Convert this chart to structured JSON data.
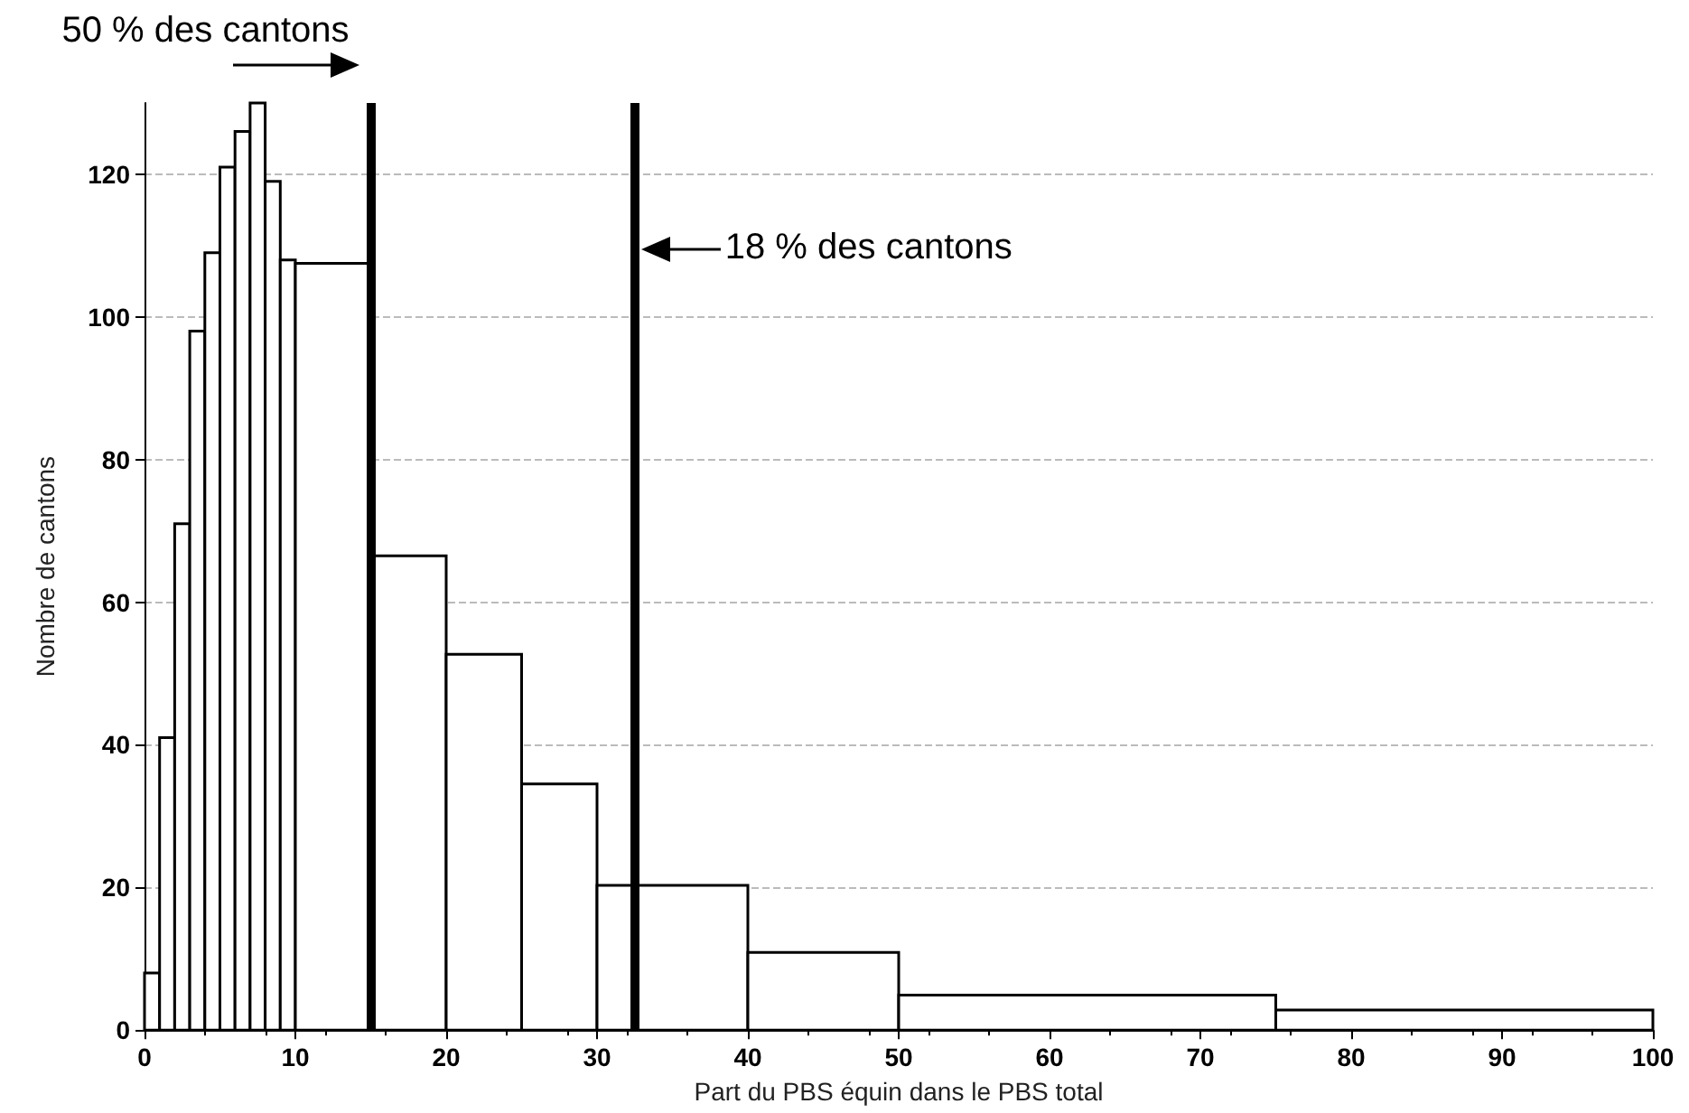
{
  "chart_data": {
    "type": "histogram",
    "xlabel": "Part du PBS équin dans le PBS total",
    "ylabel": "Nombre de cantons",
    "bins": [
      0,
      1,
      2,
      3,
      4,
      5,
      6,
      7,
      8,
      9,
      10,
      15,
      20,
      25,
      30,
      40,
      50,
      75,
      100
    ],
    "values": [
      8,
      41,
      71,
      98,
      109,
      121,
      126,
      130,
      119,
      108,
      107.5,
      66.5,
      52.7,
      34.5,
      20.3,
      10.9,
      4.9,
      2.8
    ],
    "color": "#ffffff",
    "xlim": [
      0,
      100
    ],
    "xticks": [
      0,
      10,
      20,
      30,
      40,
      50,
      60,
      70,
      80,
      90,
      100
    ],
    "ylim": [
      0,
      130
    ],
    "yticks": [
      0,
      20,
      40,
      60,
      80,
      100,
      120
    ],
    "grid": "y",
    "ref_lines": [
      {
        "axis": "x",
        "value": 15,
        "label": "50 % des cantons",
        "color": "#000000"
      },
      {
        "axis": "x",
        "value": 32.5,
        "label": "18 % des cantons",
        "color": "#000000"
      }
    ]
  }
}
